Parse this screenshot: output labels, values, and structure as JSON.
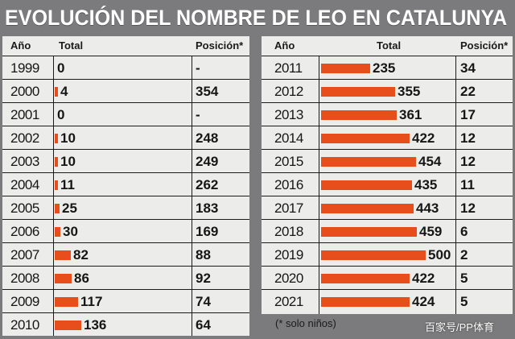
{
  "title": "EVOLUCIÓN DEL NOMBRE DE LEO EN CATALUNYA",
  "headers": {
    "year": "Año",
    "total": "Total",
    "position": "Posición*"
  },
  "note": "(* solo niños)",
  "watermark": "百家号/PP体育",
  "colors": {
    "bar": "#e84e1b",
    "background": "#7b7b7d",
    "panel": "#ececea"
  },
  "chart_data": {
    "type": "table",
    "title": "EVOLUCIÓN DEL NOMBRE DE LEO EN CATALUNYA",
    "columns": [
      "Año",
      "Total",
      "Posición*"
    ],
    "bar_max": 500,
    "rows": [
      {
        "year": "1999",
        "total": "0",
        "position": "-"
      },
      {
        "year": "2000",
        "total": "4",
        "position": "354"
      },
      {
        "year": "2001",
        "total": "0",
        "position": "-"
      },
      {
        "year": "2002",
        "total": "10",
        "position": "248"
      },
      {
        "year": "2003",
        "total": "10",
        "position": "249"
      },
      {
        "year": "2004",
        "total": "11",
        "position": "262"
      },
      {
        "year": "2005",
        "total": "25",
        "position": "183"
      },
      {
        "year": "2006",
        "total": "30",
        "position": "169"
      },
      {
        "year": "2007",
        "total": "82",
        "position": "88"
      },
      {
        "year": "2008",
        "total": "86",
        "position": "92"
      },
      {
        "year": "2009",
        "total": "117",
        "position": "74"
      },
      {
        "year": "2010",
        "total": "136",
        "position": "64"
      },
      {
        "year": "2011",
        "total": "235",
        "position": "34"
      },
      {
        "year": "2012",
        "total": "355",
        "position": "22"
      },
      {
        "year": "2013",
        "total": "361",
        "position": "17"
      },
      {
        "year": "2014",
        "total": "422",
        "position": "12"
      },
      {
        "year": "2015",
        "total": "454",
        "position": "12"
      },
      {
        "year": "2016",
        "total": "435",
        "position": "11"
      },
      {
        "year": "2017",
        "total": "443",
        "position": "12"
      },
      {
        "year": "2018",
        "total": "459",
        "position": "6"
      },
      {
        "year": "2019",
        "total": "500",
        "position": "2"
      },
      {
        "year": "2020",
        "total": "422",
        "position": "5"
      },
      {
        "year": "2021",
        "total": "424",
        "position": "5"
      }
    ]
  }
}
